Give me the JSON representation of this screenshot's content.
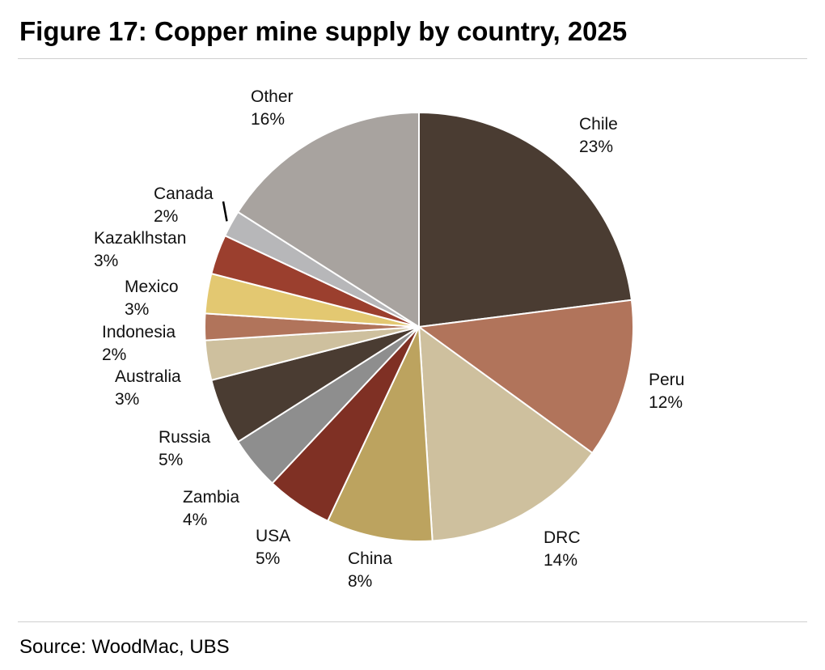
{
  "title": "Figure 17: Copper mine supply by country, 2025",
  "source": "Source: WoodMac, UBS",
  "chart_data": {
    "type": "pie",
    "title": "Figure 17: Copper mine supply by country, 2025",
    "unit": "%",
    "start": "12 o'clock, clockwise",
    "slices": [
      {
        "label": "Chile",
        "value": 23,
        "value_label": "23%",
        "color": "#4a3c32"
      },
      {
        "label": "Peru",
        "value": 12,
        "value_label": "12%",
        "color": "#b1745b"
      },
      {
        "label": "DRC",
        "value": 14,
        "value_label": "14%",
        "color": "#cec09e"
      },
      {
        "label": "China",
        "value": 8,
        "value_label": "8%",
        "color": "#bca35f"
      },
      {
        "label": "USA",
        "value": 5,
        "value_label": "5%",
        "color": "#7f3024"
      },
      {
        "label": "Zambia",
        "value": 4,
        "value_label": "4%",
        "color": "#8e8e8e"
      },
      {
        "label": "Russia",
        "value": 5,
        "value_label": "5%",
        "color": "#4a3c32"
      },
      {
        "label": "Australia",
        "value": 3,
        "value_label": "3%",
        "color": "#cec09e"
      },
      {
        "label": "Indonesia",
        "value": 2,
        "value_label": "2%",
        "color": "#b1745b"
      },
      {
        "label": "Mexico",
        "value": 3,
        "value_label": "3%",
        "color": "#e3c871"
      },
      {
        "label": "Kazaklhstan",
        "value": 3,
        "value_label": "3%",
        "color": "#9b3f2e"
      },
      {
        "label": "Canada",
        "value": 2,
        "value_label": "2%",
        "color": "#b7b7b9"
      },
      {
        "label": "Other",
        "value": 16,
        "value_label": "16%",
        "color": "#a8a39f"
      }
    ]
  }
}
